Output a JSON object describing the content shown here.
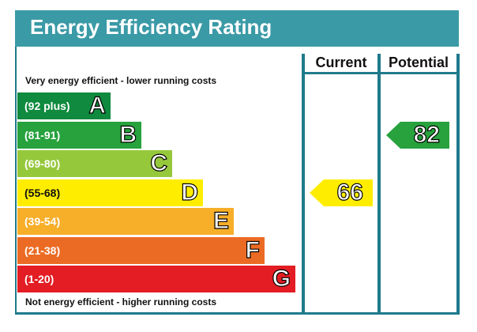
{
  "title": "Energy Efficiency Rating",
  "notes": {
    "top": "Very energy efficient - lower running costs",
    "bottom": "Not energy efficient - higher running costs"
  },
  "columns": {
    "current": "Current",
    "potential": "Potential"
  },
  "chart_data": {
    "type": "bar",
    "categories": [
      "A",
      "B",
      "C",
      "D",
      "E",
      "F",
      "G"
    ],
    "bands": [
      {
        "letter": "A",
        "range": "(92 plus)",
        "min": 92,
        "max": 100,
        "color": "#0f8a3e"
      },
      {
        "letter": "B",
        "range": "(81-91)",
        "min": 81,
        "max": 91,
        "color": "#27a23d"
      },
      {
        "letter": "C",
        "range": "(69-80)",
        "min": 69,
        "max": 80,
        "color": "#96c83c"
      },
      {
        "letter": "D",
        "range": "(55-68)",
        "min": 55,
        "max": 68,
        "color": "#ffed00"
      },
      {
        "letter": "E",
        "range": "(39-54)",
        "min": 39,
        "max": 54,
        "color": "#f7ae29"
      },
      {
        "letter": "F",
        "range": "(21-38)",
        "min": 21,
        "max": 38,
        "color": "#ec6b24"
      },
      {
        "letter": "G",
        "range": "(1-20)",
        "min": 1,
        "max": 20,
        "color": "#e31d23"
      }
    ],
    "current": {
      "value": 66,
      "band": "D",
      "color": "#ffed00"
    },
    "potential": {
      "value": 82,
      "band": "B",
      "color": "#27a23d"
    }
  }
}
